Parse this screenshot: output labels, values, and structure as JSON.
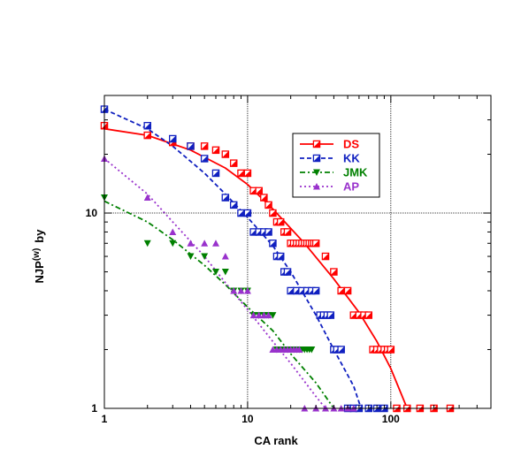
{
  "chart_data": {
    "type": "scatter",
    "x_scale": "log",
    "y_scale": "log",
    "xlim": [
      1,
      500
    ],
    "ylim": [
      1,
      40
    ],
    "xlabel": "CA rank",
    "ylabel_main": "NJP",
    "ylabel_sup": "(w)",
    "ylabel_suffix": "by",
    "grid": "major gridlines at x=10, x=100, y=10",
    "legend_position": "top-right (inside)",
    "x_tick_labels": [
      "1",
      "10",
      "100"
    ],
    "y_tick_labels": [
      "1",
      "10"
    ],
    "series": [
      {
        "name": "DS",
        "color": "#ff0000",
        "marker": "half-filled-square",
        "line_style": "solid",
        "points": [
          [
            1,
            28
          ],
          [
            2,
            25
          ],
          [
            3,
            23
          ],
          [
            4,
            22
          ],
          [
            5,
            22
          ],
          [
            6,
            21
          ],
          [
            7,
            20
          ],
          [
            8,
            18
          ],
          [
            9,
            16
          ],
          [
            10,
            16
          ],
          [
            11,
            13
          ],
          [
            12,
            13
          ],
          [
            13,
            12
          ],
          [
            14,
            11
          ],
          [
            15,
            10
          ],
          [
            16,
            9
          ],
          [
            17,
            9
          ],
          [
            18,
            8
          ],
          [
            19,
            8
          ],
          [
            20,
            7
          ],
          [
            21,
            7
          ],
          [
            22,
            7
          ],
          [
            23,
            7
          ],
          [
            24,
            7
          ],
          [
            25,
            7
          ],
          [
            26,
            7
          ],
          [
            27,
            7
          ],
          [
            28,
            7
          ],
          [
            29,
            7
          ],
          [
            30,
            7
          ],
          [
            35,
            6
          ],
          [
            40,
            5
          ],
          [
            45,
            4
          ],
          [
            50,
            4
          ],
          [
            55,
            3
          ],
          [
            60,
            3
          ],
          [
            65,
            3
          ],
          [
            70,
            3
          ],
          [
            75,
            2
          ],
          [
            80,
            2
          ],
          [
            85,
            2
          ],
          [
            90,
            2
          ],
          [
            95,
            2
          ],
          [
            100,
            2
          ],
          [
            110,
            1
          ],
          [
            130,
            1
          ],
          [
            160,
            1
          ],
          [
            200,
            1
          ],
          [
            260,
            1
          ]
        ],
        "fit": [
          [
            1,
            27
          ],
          [
            2,
            25
          ],
          [
            4,
            21
          ],
          [
            7,
            17
          ],
          [
            10,
            14
          ],
          [
            15,
            10.5
          ],
          [
            25,
            7
          ],
          [
            40,
            4.6
          ],
          [
            60,
            3.1
          ],
          [
            80,
            2.2
          ],
          [
            100,
            1.6
          ],
          [
            130,
            1
          ]
        ]
      },
      {
        "name": "KK",
        "color": "#1020c0",
        "marker": "half-filled-square",
        "line_style": "dashed",
        "points": [
          [
            1,
            34
          ],
          [
            2,
            28
          ],
          [
            3,
            24
          ],
          [
            4,
            22
          ],
          [
            5,
            19
          ],
          [
            6,
            16
          ],
          [
            7,
            12
          ],
          [
            8,
            11
          ],
          [
            9,
            10
          ],
          [
            10,
            10
          ],
          [
            11,
            8
          ],
          [
            12,
            8
          ],
          [
            13,
            8
          ],
          [
            14,
            8
          ],
          [
            15,
            7
          ],
          [
            16,
            6
          ],
          [
            17,
            6
          ],
          [
            18,
            5
          ],
          [
            19,
            5
          ],
          [
            20,
            4
          ],
          [
            22,
            4
          ],
          [
            24,
            4
          ],
          [
            26,
            4
          ],
          [
            28,
            4
          ],
          [
            30,
            4
          ],
          [
            32,
            3
          ],
          [
            34,
            3
          ],
          [
            36,
            3
          ],
          [
            38,
            3
          ],
          [
            40,
            2
          ],
          [
            42,
            2
          ],
          [
            45,
            2
          ],
          [
            50,
            1
          ],
          [
            55,
            1
          ],
          [
            60,
            1
          ],
          [
            70,
            1
          ],
          [
            80,
            1
          ],
          [
            90,
            1
          ]
        ],
        "fit": [
          [
            1,
            34
          ],
          [
            2,
            27
          ],
          [
            3,
            22
          ],
          [
            5,
            16
          ],
          [
            7,
            12.5
          ],
          [
            10,
            9.5
          ],
          [
            15,
            6.8
          ],
          [
            20,
            5
          ],
          [
            30,
            3
          ],
          [
            40,
            2
          ],
          [
            55,
            1.3
          ],
          [
            62,
            1
          ]
        ]
      },
      {
        "name": "JMK",
        "color": "#008000",
        "marker": "down-triangle",
        "line_style": "dash-dot",
        "points": [
          [
            1,
            12
          ],
          [
            2,
            7
          ],
          [
            3,
            7
          ],
          [
            4,
            6
          ],
          [
            5,
            6
          ],
          [
            6,
            5
          ],
          [
            7,
            5
          ],
          [
            8,
            4
          ],
          [
            9,
            4
          ],
          [
            10,
            4
          ],
          [
            11,
            3
          ],
          [
            12,
            3
          ],
          [
            13,
            3
          ],
          [
            14,
            3
          ],
          [
            15,
            3
          ],
          [
            16,
            2
          ],
          [
            17,
            2
          ],
          [
            18,
            2
          ],
          [
            19,
            2
          ],
          [
            20,
            2
          ],
          [
            21,
            2
          ],
          [
            22,
            2
          ],
          [
            23,
            2
          ],
          [
            24,
            2
          ],
          [
            25,
            2
          ],
          [
            26,
            2
          ],
          [
            27,
            2
          ],
          [
            28,
            2
          ]
        ],
        "fit": [
          [
            1,
            11.5
          ],
          [
            2,
            9
          ],
          [
            3,
            7.3
          ],
          [
            5,
            5.4
          ],
          [
            7,
            4.3
          ],
          [
            10,
            3.3
          ],
          [
            15,
            2.5
          ],
          [
            20,
            1.9
          ],
          [
            30,
            1.35
          ],
          [
            40,
            1
          ]
        ]
      },
      {
        "name": "AP",
        "color": "#9932cc",
        "marker": "up-triangle",
        "line_style": "dotted",
        "points": [
          [
            1,
            19
          ],
          [
            2,
            12
          ],
          [
            3,
            8
          ],
          [
            4,
            7
          ],
          [
            5,
            7
          ],
          [
            6,
            7
          ],
          [
            7,
            6
          ],
          [
            8,
            4
          ],
          [
            9,
            4
          ],
          [
            10,
            4
          ],
          [
            11,
            3
          ],
          [
            12,
            3
          ],
          [
            13,
            3
          ],
          [
            14,
            3
          ],
          [
            15,
            2
          ],
          [
            16,
            2
          ],
          [
            17,
            2
          ],
          [
            18,
            2
          ],
          [
            19,
            2
          ],
          [
            20,
            2
          ],
          [
            21,
            2
          ],
          [
            22,
            2
          ],
          [
            23,
            2
          ],
          [
            25,
            1
          ],
          [
            30,
            1
          ],
          [
            35,
            1
          ],
          [
            40,
            1
          ],
          [
            45,
            1
          ],
          [
            50,
            1
          ],
          [
            55,
            1
          ]
        ],
        "fit": [
          [
            1,
            19
          ],
          [
            2,
            12.5
          ],
          [
            3,
            9
          ],
          [
            5,
            6
          ],
          [
            7,
            4.4
          ],
          [
            10,
            3.2
          ],
          [
            15,
            2.2
          ],
          [
            20,
            1.7
          ],
          [
            30,
            1.15
          ],
          [
            35,
            1
          ]
        ]
      }
    ],
    "legend": [
      "DS",
      "KK",
      "JMK",
      "AP"
    ]
  }
}
